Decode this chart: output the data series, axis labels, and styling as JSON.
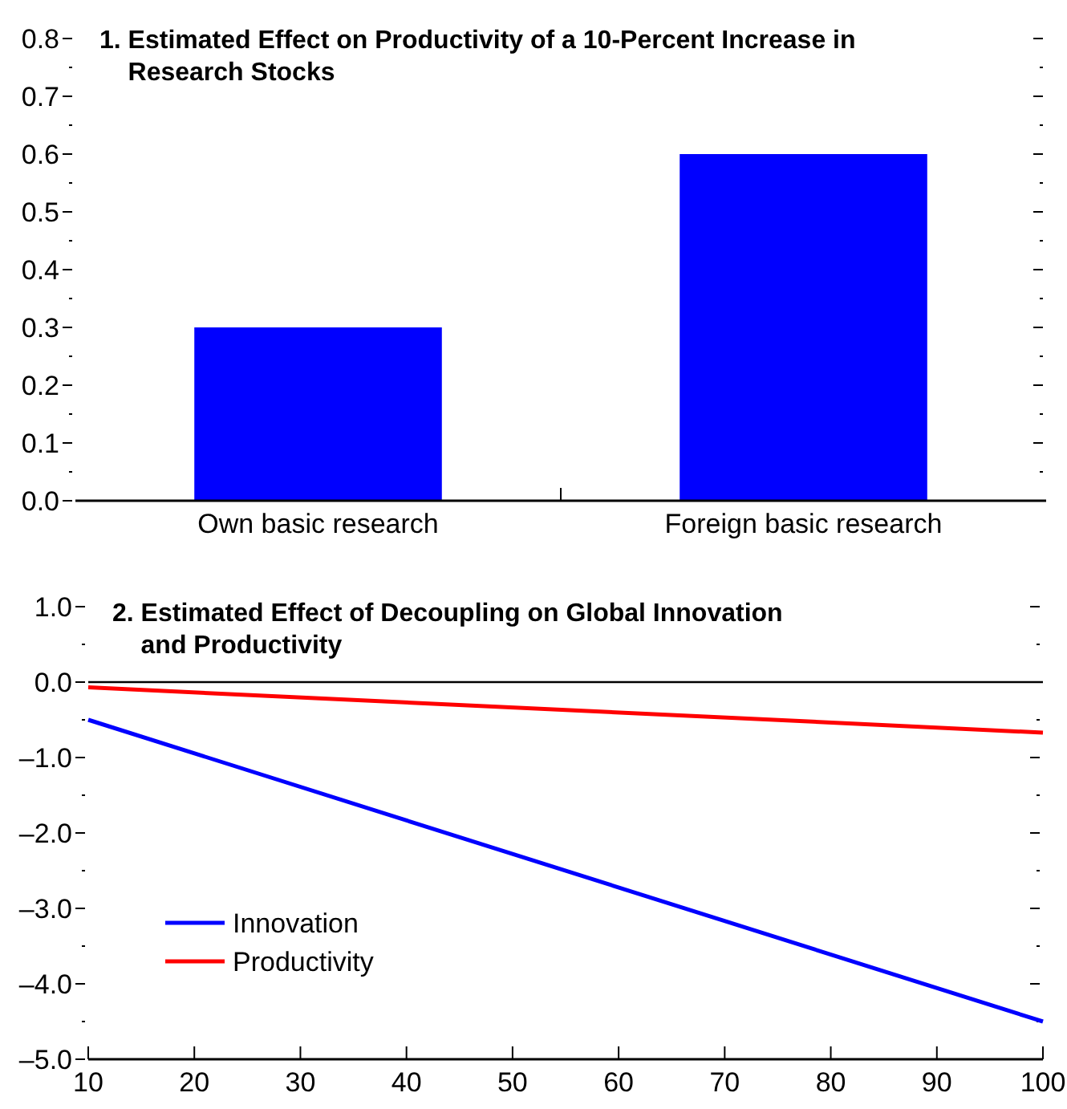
{
  "chart_data": [
    {
      "type": "bar",
      "title": "1. Estimated Effect on Productivity of a 10-Percent Increase in Research Stocks",
      "categories": [
        "Own basic research",
        "Foreign basic research"
      ],
      "values": [
        0.3,
        0.6
      ],
      "color": "#0000ff",
      "ylim": [
        0,
        0.8
      ],
      "yticks": [
        {
          "value": 0,
          "label": "0.0"
        },
        {
          "value": 0.05,
          "label": null
        },
        0.1,
        {
          "value": 0.15,
          "label": null
        },
        0.2,
        {
          "value": 0.25,
          "label": null
        },
        0.3,
        {
          "value": 0.35,
          "label": null
        },
        0.4,
        {
          "value": 0.45,
          "label": null
        },
        0.5,
        {
          "value": 0.55,
          "label": null
        },
        0.6,
        {
          "value": 0.65,
          "label": null
        },
        0.7,
        {
          "value": 0.75,
          "label": null
        },
        0.8
      ]
    },
    {
      "type": "line",
      "title": "2. Estimated Effect of Decoupling on Global Innovation and Productivity",
      "x": [
        10,
        100
      ],
      "series": [
        {
          "name": "Innovation",
          "color": "#0000ff",
          "values": [
            -0.5,
            -4.5
          ]
        },
        {
          "name": "Productivity",
          "color": "#ff0000",
          "values": [
            -0.07,
            -0.67
          ]
        }
      ],
      "xlim": [
        10,
        100
      ],
      "xticks": [
        10,
        20,
        30,
        40,
        50,
        60,
        70,
        80,
        90,
        100
      ],
      "ylim": [
        -5,
        1
      ],
      "yticks": [
        {
          "value": -5,
          "label": "–5.0"
        },
        {
          "value": -4.5,
          "label": null
        },
        {
          "value": -4,
          "label": "–4.0"
        },
        {
          "value": -3.5,
          "label": null
        },
        {
          "value": -3,
          "label": "–3.0"
        },
        {
          "value": -2.5,
          "label": null
        },
        {
          "value": -2,
          "label": "–2.0"
        },
        {
          "value": -1.5,
          "label": null
        },
        {
          "value": -1,
          "label": "–1.0"
        },
        {
          "value": -0.5,
          "label": null
        },
        {
          "value": 0,
          "label": "0.0"
        },
        {
          "value": 0.5,
          "label": null
        },
        {
          "value": 1,
          "label": "1.0"
        }
      ],
      "ref_lines": [
        {
          "axis": "y",
          "value": 0,
          "color": "#000000"
        }
      ],
      "legend": "bottom left",
      "line_style": "solid",
      "marker": "none"
    }
  ]
}
